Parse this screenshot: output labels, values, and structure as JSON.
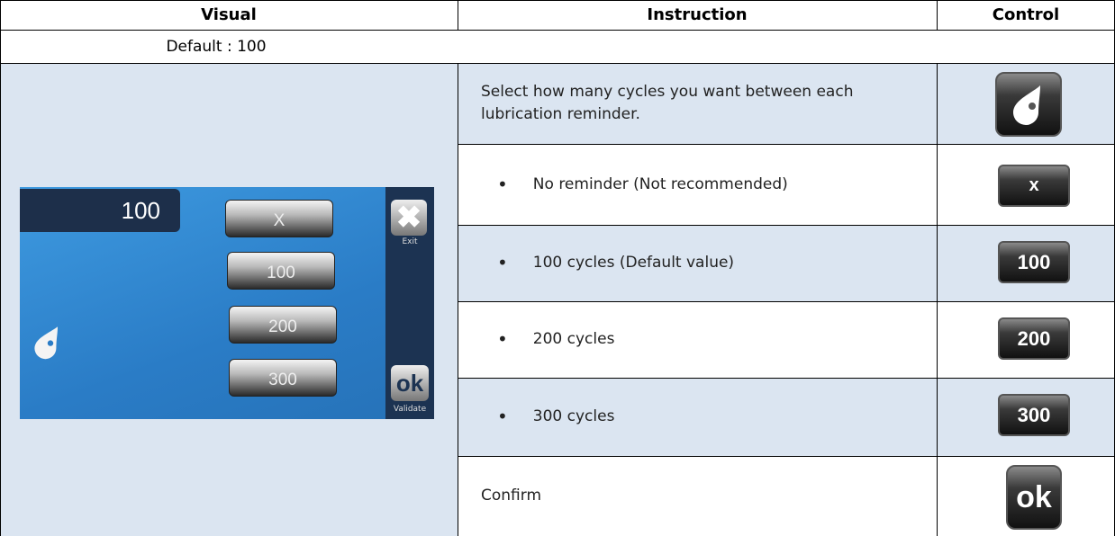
{
  "table": {
    "header": [
      "Visual",
      "Instruction",
      "Control"
    ],
    "default_row": "Default : 100",
    "rows": [
      {
        "instruction": "Select how many cycles you want between each lubrication reminder."
      },
      {
        "instruction": "No reminder (Not recommended)",
        "control": "x"
      },
      {
        "instruction": "100 cycles (Default value)",
        "control": "100"
      },
      {
        "instruction": "200 cycles",
        "control": "200"
      },
      {
        "instruction": "300 cycles",
        "control": "300"
      },
      {
        "instruction": "Confirm",
        "control": "ok"
      }
    ]
  },
  "screen": {
    "display": "100",
    "buttons": [
      "X",
      "100",
      "200",
      "300"
    ],
    "exit": "Exit",
    "ok": "ok",
    "validate": "Validate"
  }
}
